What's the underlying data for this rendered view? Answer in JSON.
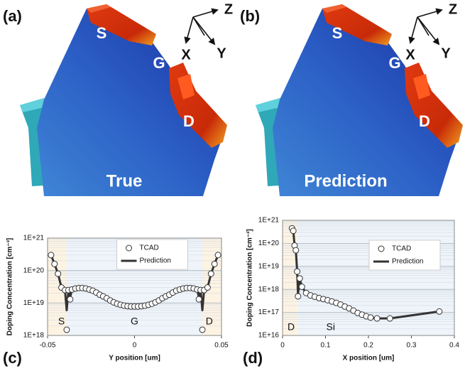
{
  "panels": [
    {
      "label": "(a)",
      "caption": "True",
      "regions": [
        "S",
        "G",
        "D"
      ],
      "axes": [
        "X",
        "Y",
        "Z"
      ]
    },
    {
      "label": "(b)",
      "caption": "Prediction",
      "regions": [
        "S",
        "G",
        "D"
      ],
      "axes": [
        "X",
        "Y",
        "Z"
      ]
    }
  ],
  "chart_data": [
    {
      "type": "line",
      "panel_label": "(c)",
      "xlabel": "Y position [um]",
      "ylabel": "Doping Concentration [cm⁻³]",
      "xlim": [
        -0.05,
        0.05
      ],
      "xticks": [
        -0.05,
        0,
        0.05
      ],
      "ylim": [
        1e+18,
        1e+21
      ],
      "log_y": true,
      "grid": true,
      "legend": "upper center",
      "yticks": [
        {
          "value": 1e+18,
          "label": "1E+18"
        },
        {
          "value": 1e+19,
          "label": "1E+19"
        },
        {
          "value": 1e+20,
          "label": "1E+20"
        },
        {
          "value": 1e+21,
          "label": "1E+21"
        }
      ],
      "annotations": [
        "S",
        "G",
        "D"
      ],
      "x": [
        -0.048,
        -0.046,
        -0.044,
        -0.042,
        -0.04,
        -0.039,
        -0.038,
        -0.037,
        -0.036,
        -0.034,
        -0.032,
        -0.03,
        -0.028,
        -0.026,
        -0.024,
        -0.022,
        -0.02,
        -0.018,
        -0.016,
        -0.014,
        -0.012,
        -0.01,
        -0.008,
        -0.006,
        -0.004,
        -0.002,
        0,
        0.002,
        0.004,
        0.006,
        0.008,
        0.01,
        0.012,
        0.014,
        0.016,
        0.018,
        0.02,
        0.022,
        0.024,
        0.026,
        0.028,
        0.03,
        0.032,
        0.034,
        0.036,
        0.037,
        0.038,
        0.039,
        0.04,
        0.042,
        0.044,
        0.046,
        0.048
      ],
      "series": [
        {
          "name": "TCAD",
          "style": "markers",
          "color": "#333333",
          "values": [
            3e+20,
            1.6e+20,
            8e+19,
            3e+19,
            2.5e+19,
            1.5e+18,
            2.5e+19,
            1.3e+19,
            2.6e+19,
            2.8e+19,
            2.9e+19,
            2.9e+19,
            2.8e+19,
            2.6e+19,
            2.4e+19,
            2.1e+19,
            1.8e+19,
            1.6e+19,
            1.4e+19,
            1.2e+19,
            1.05e+19,
            9.5e+18,
            8.8e+18,
            8.3e+18,
            8e+18,
            7.8e+18,
            7.8e+18,
            7.8e+18,
            8e+18,
            8.3e+18,
            8.8e+18,
            9.5e+18,
            1.05e+19,
            1.2e+19,
            1.4e+19,
            1.6e+19,
            1.8e+19,
            2.1e+19,
            2.4e+19,
            2.6e+19,
            2.8e+19,
            2.9e+19,
            2.9e+19,
            2.8e+19,
            2.6e+19,
            1.3e+19,
            2.5e+19,
            1.5e+18,
            2.5e+19,
            3e+19,
            8e+19,
            1.6e+20,
            3e+20
          ]
        },
        {
          "name": "Prediction",
          "style": "line",
          "color": "#333333",
          "values": [
            3e+20,
            1.6e+20,
            8e+19,
            3e+19,
            2.5e+19,
            6e+18,
            2.5e+19,
            1.5e+19,
            2.6e+19,
            2.8e+19,
            2.9e+19,
            2.9e+19,
            2.8e+19,
            2.6e+19,
            2.4e+19,
            2.1e+19,
            1.8e+19,
            1.6e+19,
            1.4e+19,
            1.2e+19,
            1.05e+19,
            9.5e+18,
            8.8e+18,
            8.3e+18,
            8e+18,
            7.8e+18,
            7.8e+18,
            7.8e+18,
            8e+18,
            8.3e+18,
            8.8e+18,
            9.5e+18,
            1.05e+19,
            1.2e+19,
            1.4e+19,
            1.6e+19,
            1.8e+19,
            2.1e+19,
            2.4e+19,
            2.6e+19,
            2.8e+19,
            2.9e+19,
            2.9e+19,
            2.8e+19,
            2.6e+19,
            1.5e+19,
            2.5e+19,
            6e+18,
            2.5e+19,
            3e+19,
            8e+19,
            1.6e+20,
            3e+20
          ]
        }
      ]
    },
    {
      "type": "line",
      "panel_label": "(d)",
      "xlabel": "X position [um]",
      "ylabel": "Doping Concentration [cm⁻³]",
      "xlim": [
        0,
        0.4
      ],
      "xticks": [
        0,
        0.1,
        0.2,
        0.3,
        0.4
      ],
      "ylim": [
        1e+16,
        1e+21
      ],
      "log_y": true,
      "grid": true,
      "legend": "upper right",
      "yticks": [
        {
          "value": 1e+16,
          "label": "1E+16"
        },
        {
          "value": 1e+17,
          "label": "1E+17"
        },
        {
          "value": 1e+18,
          "label": "1E+18"
        },
        {
          "value": 1e+19,
          "label": "1E+19"
        },
        {
          "value": 1e+20,
          "label": "1E+20"
        },
        {
          "value": 1e+21,
          "label": "1E+21"
        }
      ],
      "annotations": [
        "D",
        "Si"
      ],
      "x": [
        0.022,
        0.025,
        0.028,
        0.031,
        0.034,
        0.036,
        0.04,
        0.045,
        0.055,
        0.065,
        0.075,
        0.085,
        0.095,
        0.105,
        0.115,
        0.125,
        0.135,
        0.145,
        0.155,
        0.165,
        0.175,
        0.185,
        0.195,
        0.205,
        0.22,
        0.25,
        0.365
      ],
      "series": [
        {
          "name": "TCAD",
          "style": "markers",
          "color": "#333333",
          "values": [
            4.5e+20,
            3.5e+20,
            8e+19,
            5e+19,
            6e+18,
            5e+17,
            3e+18,
            1.3e+18,
            7e+17,
            5.5e+17,
            4.8e+17,
            4.2e+17,
            3.8e+17,
            3.4e+17,
            3e+17,
            2.6e+17,
            2.2e+17,
            1.8e+17,
            1.5e+17,
            1.2e+17,
            9.5e+16,
            8e+16,
            6.8e+16,
            6e+16,
            5.5e+16,
            5.5e+16,
            1.1e+17
          ]
        },
        {
          "name": "Prediction",
          "style": "line",
          "color": "#333333",
          "values": [
            4.5e+20,
            3.5e+20,
            8e+19,
            5e+19,
            6e+18,
            6e+17,
            3e+18,
            1.3e+18,
            7e+17,
            5.5e+17,
            4.8e+17,
            4.2e+17,
            3.8e+17,
            3.4e+17,
            3e+17,
            2.6e+17,
            2.2e+17,
            1.8e+17,
            1.5e+17,
            1.2e+17,
            9.5e+16,
            8e+16,
            6.8e+16,
            6e+16,
            5.5e+16,
            5.5e+16,
            1.1e+17
          ]
        }
      ]
    }
  ]
}
